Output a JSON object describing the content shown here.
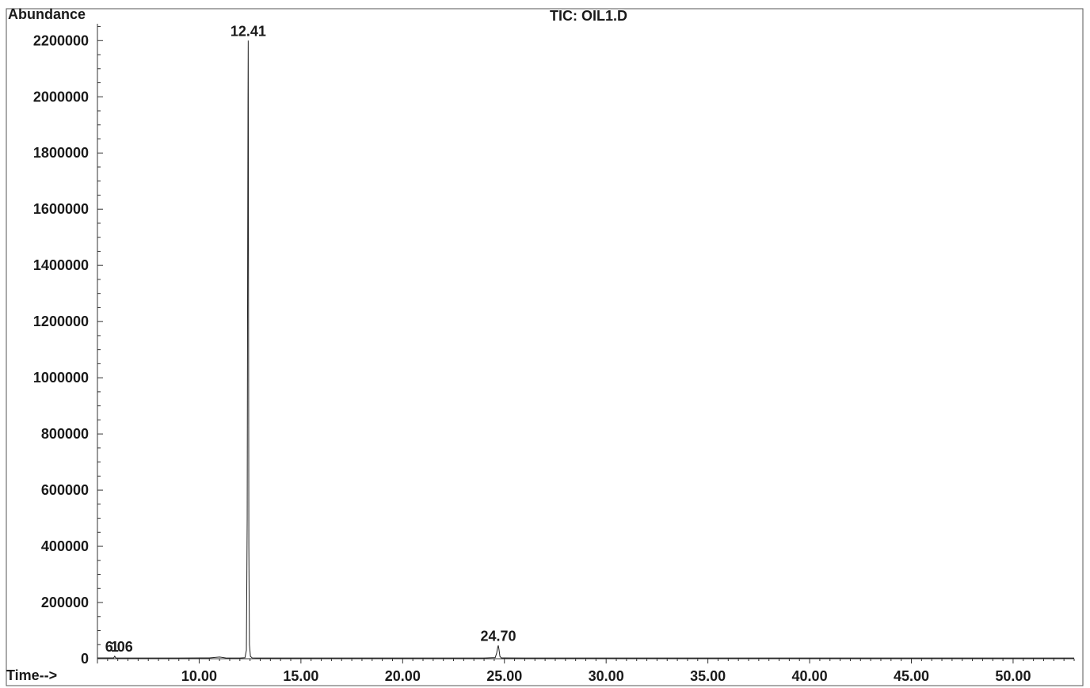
{
  "chart_data": {
    "type": "line",
    "title": "TIC: OIL1.D",
    "ylabel": "Abundance",
    "xlabel": "Time-->",
    "xlim": [
      5.0,
      53.0
    ],
    "ylim": [
      0,
      2260000
    ],
    "y_ticks": [
      0,
      200000,
      400000,
      600000,
      800000,
      1000000,
      1200000,
      1400000,
      1600000,
      1800000,
      2000000,
      2200000
    ],
    "y_tick_labels": [
      "0",
      "200000",
      "400000",
      "600000",
      "800000",
      "1000000",
      "1200000",
      "1400000",
      "1600000",
      "1800000",
      "2000000",
      "2200000"
    ],
    "x_ticks": [
      10,
      15,
      20,
      25,
      30,
      35,
      40,
      45,
      50
    ],
    "x_tick_labels": [
      "10.00",
      "15.00",
      "20.00",
      "25.00",
      "30.00",
      "35.00",
      "40.00",
      "45.00",
      "50.00"
    ],
    "series": [
      {
        "x": [
          5.0,
          5.8,
          5.85,
          5.9,
          7.0,
          9.0,
          10.5,
          11.0,
          11.3,
          11.6,
          12.0,
          12.25,
          12.32,
          12.36,
          12.38,
          12.4,
          12.41,
          12.42,
          12.44,
          12.47,
          12.52,
          12.6,
          13.0,
          16.0,
          20.0,
          24.0,
          24.55,
          24.62,
          24.67,
          24.7,
          24.73,
          24.78,
          24.85,
          26.0,
          30.0,
          35.0,
          40.0,
          45.0,
          50.0,
          53.0
        ],
        "y": [
          3000,
          3000,
          9000,
          3000,
          2500,
          2500,
          3000,
          6000,
          3000,
          2500,
          2500,
          3500,
          30000,
          500000,
          1350000,
          2000000,
          2200000,
          1600000,
          400000,
          50000,
          8000,
          3000,
          2500,
          2500,
          2500,
          2500,
          4000,
          20000,
          40000,
          47000,
          35000,
          8000,
          3000,
          2500,
          2500,
          2500,
          2500,
          2500,
          2500,
          2500
        ]
      }
    ],
    "peaks": [
      {
        "label": "12.41",
        "x": 12.41,
        "y": 2200000
      },
      {
        "label": "24.70",
        "x": 24.7,
        "y": 47000
      },
      {
        "label": "6.06",
        "x": 6.06,
        "y": 9000
      },
      {
        "label": "1",
        "x": 5.85,
        "y": 9000
      }
    ]
  }
}
